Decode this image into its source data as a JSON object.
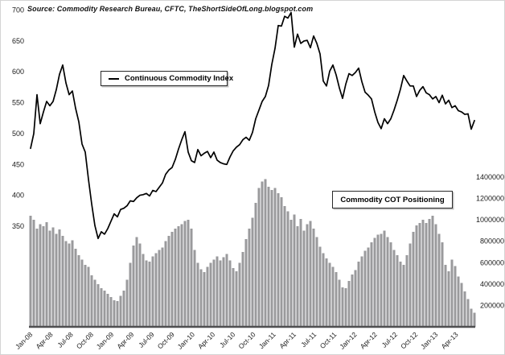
{
  "source_note": "Source: Commodity Research Bureau, CFTC, TheShortSideOfLong.blogspot.com",
  "colors": {
    "background": "#ffffff",
    "bar_fill": "#9a9a9c",
    "line_stroke": "#000000",
    "axis_line": "#4f4f51",
    "tick_text": "#1a1a1a"
  },
  "chart_data": {
    "type": "line+bar",
    "title": "",
    "legend": [
      {
        "label": "Continuous Commodity Index",
        "marker": "line-sample-icon"
      },
      {
        "label": "Commodity COT Positioning",
        "marker": "none"
      }
    ],
    "x_tick_labels": [
      "Jan-08",
      "Apr-08",
      "Jul-08",
      "Oct-08",
      "Jan-09",
      "Apr-09",
      "Jul-09",
      "Oct-09",
      "Jan-10",
      "Apr-10",
      "Jul-10",
      "Oct-10",
      "Jan-11",
      "Apr-11",
      "Jul-11",
      "Oct-11",
      "Jan-12",
      "Apr-12",
      "Jul-12",
      "Oct-12",
      "Jan-13",
      "Apr-13"
    ],
    "left_axis": {
      "tick_labels": [
        700,
        650,
        600,
        550,
        500,
        450,
        400,
        350
      ],
      "unit": "index points",
      "gridlines": false
    },
    "right_axis": {
      "tick_labels": [
        1400000,
        1200000,
        1000000,
        800000,
        600000,
        400000,
        200000
      ],
      "unit": "contracts",
      "gridlines": false
    },
    "sampling": "biweekly, Jan-2008 to mid-2013",
    "series": [
      {
        "name": "Continuous Commodity Index",
        "type": "line",
        "axis": "left",
        "values": [
          476,
          500,
          563,
          516,
          535,
          552,
          545,
          552,
          571,
          596,
          611,
          582,
          563,
          569,
          541,
          519,
          483,
          470,
          426,
          386,
          351,
          330,
          341,
          337,
          346,
          358,
          370,
          365,
          377,
          379,
          383,
          391,
          390,
          396,
          400,
          401,
          403,
          399,
          408,
          406,
          413,
          420,
          434,
          441,
          445,
          458,
          475,
          490,
          503,
          470,
          456,
          453,
          474,
          464,
          468,
          471,
          461,
          470,
          457,
          453,
          451,
          450,
          462,
          472,
          478,
          482,
          490,
          494,
          489,
          502,
          524,
          538,
          552,
          560,
          578,
          612,
          638,
          675,
          674,
          690,
          687,
          696,
          640,
          661,
          646,
          650,
          651,
          639,
          658,
          646,
          629,
          585,
          577,
          601,
          611,
          595,
          574,
          557,
          580,
          597,
          594,
          599,
          606,
          584,
          567,
          562,
          556,
          535,
          518,
          508,
          524,
          516,
          524,
          538,
          554,
          572,
          594,
          585,
          577,
          577,
          560,
          570,
          576,
          566,
          563,
          556,
          560,
          550,
          562,
          548,
          554,
          542,
          545,
          537,
          535,
          531,
          532,
          507,
          521
        ]
      },
      {
        "name": "Commodity COT Positioning",
        "type": "bar",
        "axis": "right",
        "values": [
          1040000,
          1000000,
          920000,
          960000,
          940000,
          980000,
          900000,
          930000,
          870000,
          910000,
          850000,
          800000,
          780000,
          810000,
          730000,
          670000,
          630000,
          580000,
          560000,
          480000,
          440000,
          400000,
          360000,
          340000,
          310000,
          280000,
          250000,
          240000,
          290000,
          340000,
          440000,
          600000,
          760000,
          840000,
          780000,
          680000,
          620000,
          610000,
          660000,
          690000,
          720000,
          740000,
          800000,
          850000,
          890000,
          920000,
          940000,
          960000,
          990000,
          1000000,
          920000,
          720000,
          600000,
          540000,
          510000,
          560000,
          600000,
          630000,
          660000,
          620000,
          650000,
          680000,
          620000,
          550000,
          520000,
          600000,
          700000,
          820000,
          920000,
          1020000,
          1160000,
          1300000,
          1360000,
          1380000,
          1310000,
          1280000,
          1300000,
          1250000,
          1210000,
          1130000,
          1080000,
          1000000,
          1050000,
          940000,
          1010000,
          900000,
          960000,
          990000,
          920000,
          840000,
          750000,
          690000,
          640000,
          600000,
          560000,
          510000,
          440000,
          370000,
          360000,
          430000,
          490000,
          530000,
          610000,
          660000,
          710000,
          740000,
          790000,
          830000,
          860000,
          870000,
          900000,
          840000,
          790000,
          720000,
          670000,
          610000,
          580000,
          670000,
          780000,
          890000,
          950000,
          970000,
          1000000,
          970000,
          1010000,
          1040000,
          960000,
          870000,
          790000,
          580000,
          520000,
          630000,
          570000,
          470000,
          410000,
          330000,
          260000,
          170000,
          130000
        ]
      }
    ]
  }
}
